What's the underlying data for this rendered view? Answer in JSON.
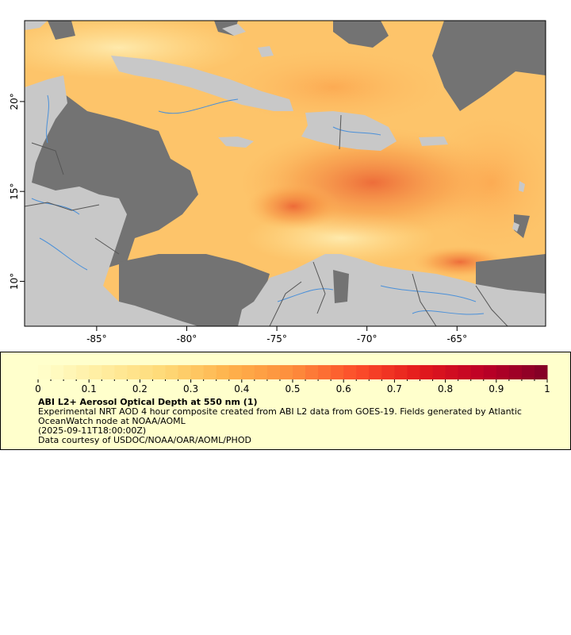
{
  "map": {
    "lon_ticks": [
      "-85°",
      "-80°",
      "-75°",
      "-70°",
      "-65°"
    ],
    "lat_ticks": [
      "20°",
      "15°",
      "10°"
    ],
    "colors": {
      "land": "#c8c8c8",
      "nodata": "#737373",
      "rivers": "#4a90d9",
      "borders": "#555555"
    }
  },
  "legend": {
    "ticks": [
      "0",
      "0.1",
      "0.2",
      "0.3",
      "0.4",
      "0.5",
      "0.6",
      "0.7",
      "0.8",
      "0.9",
      "1"
    ],
    "colormap": [
      "#ffffcc",
      "#ffeda0",
      "#fed976",
      "#feb24c",
      "#fd8d3c",
      "#fc4e2a",
      "#e31a1c",
      "#bd0026",
      "#800026"
    ],
    "title": "ABI L2+ Aerosol Optical Depth at 550 nm (1)",
    "description": "Experimental NRT AOD 4 hour composite created from ABI L2 data from GOES-19. Fields generated by Atlantic OceanWatch node at NOAA/AOML",
    "timestamp": "(2025-09-11T18:00:00Z)",
    "credit": "Data courtesy of USDOC/NOAA/OAR/AOML/PHOD"
  }
}
